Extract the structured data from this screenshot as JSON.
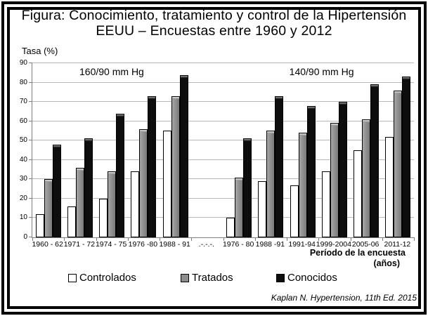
{
  "title": {
    "line1": "Figura: Conocimiento, tratamiento y control de la Hipertensión",
    "line2": "EEUU – Encuestas entre 1960 y 2012"
  },
  "axes": {
    "y_label": "Tasa (%)",
    "x_label_line1": "Período de la encuesta",
    "x_label_line2": "(años)"
  },
  "legend": {
    "items": [
      {
        "key": "controlados",
        "label": "Controlados",
        "color": "#ffffff"
      },
      {
        "key": "tratados",
        "label": "Tratados",
        "color": "#8c8c8c"
      },
      {
        "key": "conocidos",
        "label": "Conocidos",
        "color": "#0d0d0d"
      }
    ]
  },
  "citation": "Kaplan N. Hypertension, 11th Ed. 2015",
  "chart_data": {
    "type": "bar",
    "title": "Figura: Conocimiento, tratamiento y control de la Hipertensión EEUU – Encuestas entre 1960 y 2012",
    "ylabel": "Tasa (%)",
    "xlabel": "Período de la encuesta (años)",
    "ylim": [
      0,
      90
    ],
    "ytick_interval": 10,
    "grid": true,
    "legend_position": "bottom",
    "group_labels": [
      "160/90 mm Hg",
      "140/90 mm Hg"
    ],
    "categories": [
      "1960 - 62",
      "1971 - 72",
      "1974 - 75",
      "1976 -80",
      "1988 - 91",
      ".-.-.-.",
      "1976 - 80",
      "1988 -91",
      "1991-94",
      "1999-2004",
      "2005-06",
      "2011-12"
    ],
    "series": [
      {
        "name": "Controlados",
        "key": "controlados",
        "color": "#ffffff",
        "values": [
          12,
          16,
          20,
          34,
          55,
          null,
          10,
          29,
          27,
          34,
          45,
          52
        ]
      },
      {
        "name": "Tratados",
        "key": "tratados",
        "color": "#8c8c8c",
        "values": [
          30,
          36,
          34,
          56,
          73,
          null,
          31,
          55,
          54,
          59,
          61,
          76
        ]
      },
      {
        "name": "Conocidos",
        "key": "conocidos",
        "color": "#0d0d0d",
        "values": [
          48,
          51,
          64,
          73,
          84,
          null,
          51,
          73,
          68,
          70,
          79,
          83
        ]
      }
    ]
  }
}
